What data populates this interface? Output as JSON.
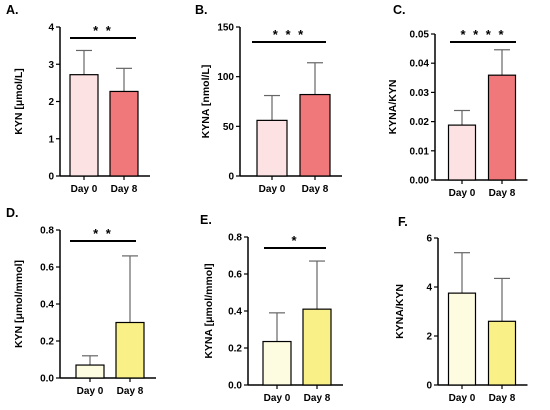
{
  "figure": {
    "panels": [
      {
        "letter": "A.",
        "ylabel": "KYN [μmol/L]",
        "significance": "* *"
      },
      {
        "letter": "B.",
        "ylabel": "KYNA [nmol/L]",
        "significance": "* * *"
      },
      {
        "letter": "C.",
        "ylabel": "KYNA/KYN",
        "significance": "* * * *"
      },
      {
        "letter": "D.",
        "ylabel": "KYN [μmol/mmol]",
        "significance": "* *"
      },
      {
        "letter": "E.",
        "ylabel": "KYNA [μmol/mmol]",
        "significance": "*"
      },
      {
        "letter": "F.",
        "ylabel": "KYNA/KYN",
        "significance": ""
      }
    ]
  },
  "colors": {
    "a_day0_fill": "#fde2e3",
    "a_day8_fill": "#f0787a",
    "d_day0_fill": "#fdfbe0",
    "d_day8_fill": "#faf088",
    "axis": "#000000",
    "error_bar": "#666666"
  },
  "chart_data": [
    {
      "type": "bar",
      "panel": "A.",
      "categories": [
        "Day 0",
        "Day 8"
      ],
      "values": [
        2.72,
        2.27
      ],
      "errors": [
        0.65,
        0.62
      ],
      "ylabel": "KYN [μmol/L]",
      "ylim": [
        0,
        4
      ],
      "yticks": [
        "0",
        "1",
        "2",
        "3",
        "4"
      ],
      "significance": "* *",
      "grid": false
    },
    {
      "type": "bar",
      "panel": "B.",
      "categories": [
        "Day 0",
        "Day 8"
      ],
      "values": [
        56,
        82
      ],
      "errors": [
        25,
        32
      ],
      "ylabel": "KYNA [nmol/L]",
      "ylim": [
        0,
        150
      ],
      "yticks": [
        "0",
        "50",
        "100",
        "150"
      ],
      "significance": "* * *",
      "grid": false
    },
    {
      "type": "bar",
      "panel": "C.",
      "categories": [
        "Day 0",
        "Day 8"
      ],
      "values": [
        0.0188,
        0.0359
      ],
      "errors": [
        0.005,
        0.0087
      ],
      "ylabel": "KYNA/KYN",
      "ylim": [
        0,
        0.05
      ],
      "yticks": [
        "0.00",
        "0.01",
        "0.02",
        "0.03",
        "0.04",
        "0.05"
      ],
      "significance": "* * * *",
      "grid": false
    },
    {
      "type": "bar",
      "panel": "D.",
      "categories": [
        "Day 0",
        "Day 8"
      ],
      "values": [
        0.07,
        0.3
      ],
      "errors": [
        0.05,
        0.36
      ],
      "ylabel": "KYN [μmol/mmol]",
      "ylim": [
        0,
        0.8
      ],
      "yticks": [
        "0.0",
        "0.2",
        "0.4",
        "0.6",
        "0.8"
      ],
      "significance": "* *",
      "grid": false
    },
    {
      "type": "bar",
      "panel": "E.",
      "categories": [
        "Day 0",
        "Day 8"
      ],
      "values": [
        0.235,
        0.41
      ],
      "errors": [
        0.155,
        0.26
      ],
      "ylabel": "KYNA [μmol/mmol]",
      "ylim": [
        0,
        0.8
      ],
      "yticks": [
        "0.0",
        "0.2",
        "0.4",
        "0.6",
        "0.8"
      ],
      "significance": "*",
      "grid": false
    },
    {
      "type": "bar",
      "panel": "F.",
      "categories": [
        "Day 0",
        "Day 8"
      ],
      "values": [
        3.75,
        2.6
      ],
      "errors": [
        1.65,
        1.75
      ],
      "ylabel": "KYNA/KYN",
      "ylim": [
        0,
        6
      ],
      "yticks": [
        "0",
        "2",
        "4",
        "6"
      ],
      "significance": "",
      "grid": false
    }
  ]
}
